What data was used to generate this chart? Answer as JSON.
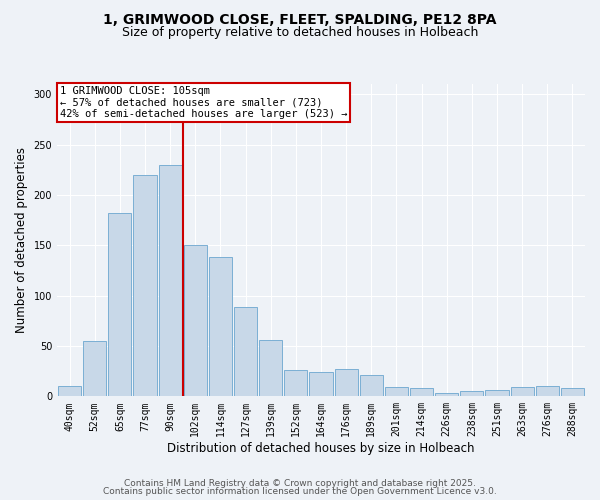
{
  "title_line1": "1, GRIMWOOD CLOSE, FLEET, SPALDING, PE12 8PA",
  "title_line2": "Size of property relative to detached houses in Holbeach",
  "xlabel": "Distribution of detached houses by size in Holbeach",
  "ylabel": "Number of detached properties",
  "categories": [
    "40sqm",
    "52sqm",
    "65sqm",
    "77sqm",
    "90sqm",
    "102sqm",
    "114sqm",
    "127sqm",
    "139sqm",
    "152sqm",
    "164sqm",
    "176sqm",
    "189sqm",
    "201sqm",
    "214sqm",
    "226sqm",
    "238sqm",
    "251sqm",
    "263sqm",
    "276sqm",
    "288sqm"
  ],
  "values": [
    10,
    55,
    182,
    220,
    230,
    150,
    138,
    89,
    56,
    26,
    24,
    27,
    21,
    9,
    8,
    3,
    5,
    6,
    9,
    10,
    8
  ],
  "bar_color": "#c8d8e8",
  "bar_edge_color": "#7bafd4",
  "vline_x_index": 5,
  "vline_color": "#cc0000",
  "annotation_text": "1 GRIMWOOD CLOSE: 105sqm\n← 57% of detached houses are smaller (723)\n42% of semi-detached houses are larger (523) →",
  "annotation_box_color": "#ffffff",
  "annotation_box_edge_color": "#cc0000",
  "annotation_fontsize": 7.5,
  "ylim": [
    0,
    310
  ],
  "yticks": [
    0,
    50,
    100,
    150,
    200,
    250,
    300
  ],
  "footer_line1": "Contains HM Land Registry data © Crown copyright and database right 2025.",
  "footer_line2": "Contains public sector information licensed under the Open Government Licence v3.0.",
  "background_color": "#eef2f7",
  "grid_color": "#ffffff",
  "title_fontsize": 10,
  "subtitle_fontsize": 9,
  "axis_label_fontsize": 8.5,
  "tick_fontsize": 7,
  "footer_fontsize": 6.5
}
